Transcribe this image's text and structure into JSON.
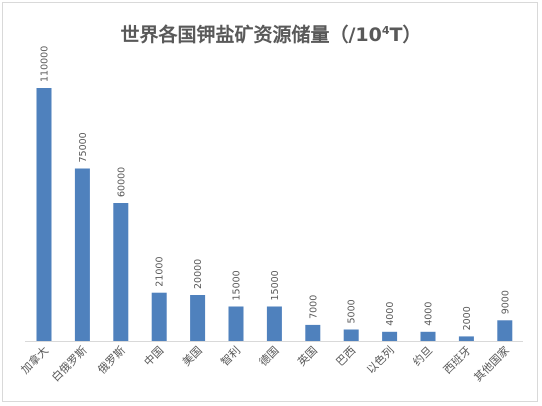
{
  "chart_data": {
    "type": "bar",
    "title_prefix": "世界各国钾盐矿资源储量（/10",
    "title_sup": "4",
    "title_suffix": "T）",
    "categories": [
      "加拿大",
      "白俄罗斯",
      "俄罗斯",
      "中国",
      "美国",
      "智利",
      "德国",
      "英国",
      "巴西",
      "以色列",
      "约旦",
      "西班牙",
      "其他国家"
    ],
    "values": [
      110000,
      75000,
      60000,
      21000,
      20000,
      15000,
      15000,
      7000,
      5000,
      4000,
      4000,
      2000,
      9000
    ],
    "data_labels": [
      "110000",
      "75000",
      "60000",
      "21000",
      "20000",
      "15000",
      "15000",
      "7000",
      "5000",
      "4000",
      "4000",
      "2000",
      "9000"
    ],
    "ylim": [
      0,
      110000
    ],
    "grid": false,
    "legend": "none",
    "bar_color": "#4f81bd",
    "axis_color": "#d9d9d9",
    "label_color": "#595959"
  }
}
